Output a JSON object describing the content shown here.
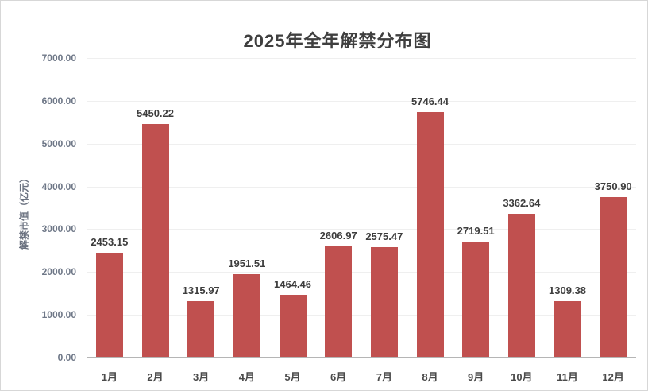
{
  "chart_data": {
    "type": "bar",
    "title": "2025年全年解禁分布图",
    "ylabel": "解禁市值（亿元）",
    "xlabel": "",
    "categories": [
      "1月",
      "2月",
      "3月",
      "4月",
      "5月",
      "6月",
      "7月",
      "8月",
      "9月",
      "10月",
      "11月",
      "12月"
    ],
    "values": [
      2453.15,
      5450.22,
      1315.97,
      1951.51,
      1464.46,
      2606.97,
      2575.47,
      5746.44,
      2719.51,
      3362.64,
      1309.38,
      3750.9
    ],
    "value_labels": [
      "2453.15",
      "5450.22",
      "1315.97",
      "1951.51",
      "1464.46",
      "2606.97",
      "2575.47",
      "5746.44",
      "2719.51",
      "3362.64",
      "1309.38",
      "3750.90"
    ],
    "ylim": [
      0,
      7000
    ],
    "ytick_step": 1000,
    "ytick_labels": [
      "0.00",
      "1000.00",
      "2000.00",
      "3000.00",
      "4000.00",
      "5000.00",
      "6000.00",
      "7000.00"
    ],
    "grid": true,
    "legend": "none",
    "colors": {
      "bar": "#C0504F",
      "title": "#3f3f3f",
      "tick_label": "#6e7787",
      "data_label": "#3d3d3d",
      "gridline": "#efefef",
      "axis_line": "#b5b5b5"
    }
  }
}
